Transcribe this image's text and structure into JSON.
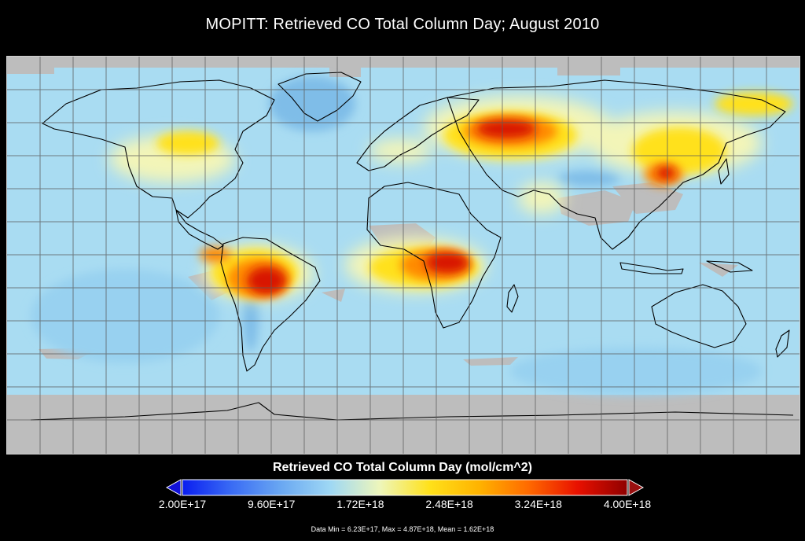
{
  "title": "MOPITT: Retrieved CO Total Column Day; August 2010",
  "colorbar": {
    "title": "Retrieved CO Total Column Day (mol/cm^2)",
    "tick_labels": [
      "2.00E+17",
      "9.60E+17",
      "1.72E+18",
      "2.48E+18",
      "3.24E+18",
      "4.00E+18"
    ],
    "range": [
      2e+17,
      4e+18
    ],
    "colors": [
      "#0a1ef0",
      "#3a6cf4",
      "#6aa8f2",
      "#9fd8f4",
      "#eef6ba",
      "#ffe11a",
      "#ffb300",
      "#ff6a00",
      "#e81000",
      "#8f0000"
    ],
    "over_color": "#9a1010",
    "under_color": "#1212d8"
  },
  "stats_text": "Data Min = 6.23E+17, Max = 4.87E+18, Mean = 1.62E+18",
  "map": {
    "no_data_color": "#bdbdbd",
    "background_color": "#a9dcf2",
    "gridlines": true
  }
}
